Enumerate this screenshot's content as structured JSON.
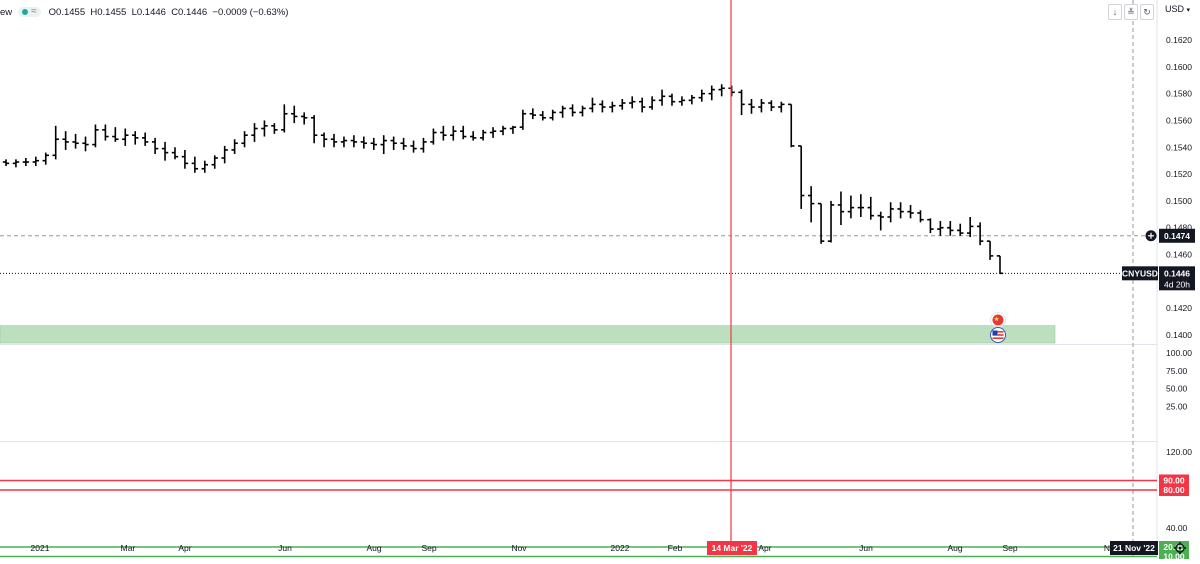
{
  "legend": {
    "cut_text": "ew",
    "waves_symbol": "≈",
    "ohlc": "O0.1455  H0.1455  L0.1446  C0.1446  −0.0009 (−0.63%)"
  },
  "toolbar": {
    "currency": "USD",
    "down_icon": "↓",
    "collapse_icon": "≚"
  },
  "colors": {
    "bar": "#000000",
    "zone": "#a5d6a7",
    "red_line": "#f23645",
    "green_line": "#4caf50",
    "badge_bg": "#131722",
    "date_badge_bg": "#f23645",
    "grid_separator": "#e0e3eb"
  },
  "chart_data": [
    {
      "type": "ohlc",
      "x_axis": {
        "labels": [
          "2021",
          "Mar",
          "Apr",
          "Jun",
          "Aug",
          "Sep",
          "Nov",
          "2022",
          "Feb",
          "Apr",
          "Jun",
          "Aug",
          "Sep",
          "N"
        ]
      },
      "y_axis": {
        "ticks": [
          "0.1620",
          "0.1600",
          "0.1580",
          "0.1560",
          "0.1540",
          "0.1520",
          "0.1500",
          "0.1480",
          "0.1460",
          "0.1440",
          "0.1420",
          "0.1400"
        ],
        "range": [
          0.1392,
          0.1632
        ]
      },
      "symbol": "CNYUSD",
      "last_price": "0.1446",
      "countdown": "4d 20h",
      "crosshair_price": "0.1474",
      "crosshair_date": "14 Mar '22",
      "end_date": "21 Nov '22",
      "zone": {
        "low": 0.1394,
        "high": 0.1407
      },
      "bars": [
        [
          0.1529,
          0.1531,
          0.1526,
          0.1528
        ],
        [
          0.1528,
          0.1531,
          0.1525,
          0.1529
        ],
        [
          0.1529,
          0.1532,
          0.1526,
          0.1529
        ],
        [
          0.1529,
          0.1533,
          0.1526,
          0.153
        ],
        [
          0.153,
          0.1536,
          0.1527,
          0.1534
        ],
        [
          0.1534,
          0.1556,
          0.1531,
          0.1546
        ],
        [
          0.1546,
          0.1552,
          0.1538,
          0.1544
        ],
        [
          0.1544,
          0.155,
          0.1539,
          0.1543
        ],
        [
          0.1543,
          0.1548,
          0.1537,
          0.1542
        ],
        [
          0.1542,
          0.1557,
          0.154,
          0.1553
        ],
        [
          0.1553,
          0.1557,
          0.1545,
          0.1548
        ],
        [
          0.1548,
          0.1555,
          0.1544,
          0.1546
        ],
        [
          0.1546,
          0.1554,
          0.1541,
          0.1549
        ],
        [
          0.1549,
          0.1552,
          0.1542,
          0.1547
        ],
        [
          0.1547,
          0.1551,
          0.1541,
          0.1544
        ],
        [
          0.1544,
          0.1547,
          0.1535,
          0.1539
        ],
        [
          0.1539,
          0.1544,
          0.153,
          0.1536
        ],
        [
          0.1536,
          0.154,
          0.1531,
          0.1533
        ],
        [
          0.1533,
          0.1538,
          0.1524,
          0.1528
        ],
        [
          0.1528,
          0.1533,
          0.1521,
          0.1524
        ],
        [
          0.1524,
          0.153,
          0.1521,
          0.1527
        ],
        [
          0.1527,
          0.1534,
          0.1524,
          0.1532
        ],
        [
          0.1532,
          0.1541,
          0.1528,
          0.1538
        ],
        [
          0.1538,
          0.1546,
          0.1535,
          0.1543
        ],
        [
          0.1543,
          0.1552,
          0.154,
          0.1549
        ],
        [
          0.1549,
          0.1558,
          0.1544,
          0.1554
        ],
        [
          0.1554,
          0.156,
          0.1548,
          0.1556
        ],
        [
          0.1556,
          0.1558,
          0.155,
          0.1553
        ],
        [
          0.1553,
          0.1572,
          0.1551,
          0.1565
        ],
        [
          0.1565,
          0.1571,
          0.1558,
          0.1563
        ],
        [
          0.1563,
          0.1566,
          0.1557,
          0.1562
        ],
        [
          0.1562,
          0.1564,
          0.1543,
          0.1549
        ],
        [
          0.1549,
          0.1551,
          0.154,
          0.1546
        ],
        [
          0.1546,
          0.155,
          0.154,
          0.1544
        ],
        [
          0.1544,
          0.1548,
          0.154,
          0.1545
        ],
        [
          0.1545,
          0.1549,
          0.154,
          0.1544
        ],
        [
          0.1544,
          0.1548,
          0.1539,
          0.1543
        ],
        [
          0.1543,
          0.1547,
          0.1538,
          0.1542
        ],
        [
          0.1542,
          0.1549,
          0.1535,
          0.1545
        ],
        [
          0.1545,
          0.1548,
          0.1538,
          0.1543
        ],
        [
          0.1543,
          0.1547,
          0.1538,
          0.1541
        ],
        [
          0.1541,
          0.1545,
          0.1536,
          0.1539
        ],
        [
          0.1539,
          0.1547,
          0.1536,
          0.1544
        ],
        [
          0.1544,
          0.1554,
          0.1542,
          0.1551
        ],
        [
          0.1551,
          0.1556,
          0.1545,
          0.1549
        ],
        [
          0.1549,
          0.1556,
          0.1545,
          0.1552
        ],
        [
          0.1552,
          0.1556,
          0.1546,
          0.1548
        ],
        [
          0.1548,
          0.1552,
          0.1545,
          0.1547
        ],
        [
          0.1547,
          0.1553,
          0.1545,
          0.1551
        ],
        [
          0.1551,
          0.1555,
          0.1547,
          0.1552
        ],
        [
          0.1552,
          0.1556,
          0.1549,
          0.1554
        ],
        [
          0.1554,
          0.1556,
          0.155,
          0.1555
        ],
        [
          0.1555,
          0.1568,
          0.1553,
          0.1565
        ],
        [
          0.1565,
          0.1569,
          0.1561,
          0.1564
        ],
        [
          0.1564,
          0.1567,
          0.156,
          0.1562
        ],
        [
          0.1562,
          0.1568,
          0.156,
          0.1566
        ],
        [
          0.1566,
          0.1571,
          0.1562,
          0.1569
        ],
        [
          0.1569,
          0.1572,
          0.1563,
          0.1566
        ],
        [
          0.1566,
          0.1571,
          0.1563,
          0.1569
        ],
        [
          0.1569,
          0.1577,
          0.1566,
          0.1572
        ],
        [
          0.1572,
          0.1575,
          0.1566,
          0.157
        ],
        [
          0.157,
          0.1574,
          0.1566,
          0.1571
        ],
        [
          0.1571,
          0.1576,
          0.1568,
          0.1573
        ],
        [
          0.1573,
          0.1578,
          0.1569,
          0.1574
        ],
        [
          0.1574,
          0.1577,
          0.1566,
          0.157
        ],
        [
          0.157,
          0.1578,
          0.1568,
          0.1575
        ],
        [
          0.1575,
          0.1583,
          0.1571,
          0.1578
        ],
        [
          0.1578,
          0.158,
          0.1571,
          0.1574
        ],
        [
          0.1574,
          0.1578,
          0.1571,
          0.1575
        ],
        [
          0.1575,
          0.1579,
          0.1572,
          0.1577
        ],
        [
          0.1577,
          0.1583,
          0.1574,
          0.158
        ],
        [
          0.158,
          0.1586,
          0.1575,
          0.1583
        ],
        [
          0.1583,
          0.1587,
          0.1578,
          0.1584
        ],
        [
          0.1584,
          0.1586,
          0.1578,
          0.1581
        ],
        [
          0.1581,
          0.1583,
          0.1564,
          0.1572
        ],
        [
          0.1572,
          0.1576,
          0.1565,
          0.157
        ],
        [
          0.157,
          0.1576,
          0.1566,
          0.1573
        ],
        [
          0.1573,
          0.1575,
          0.1567,
          0.157
        ],
        [
          0.157,
          0.1574,
          0.1566,
          0.1572
        ],
        [
          0.1572,
          0.1572,
          0.154,
          0.1541
        ],
        [
          0.1541,
          0.1541,
          0.1494,
          0.1504
        ],
        [
          0.1504,
          0.1511,
          0.1484,
          0.1498
        ],
        [
          0.1498,
          0.1498,
          0.1468,
          0.147
        ],
        [
          0.147,
          0.15,
          0.1469,
          0.1497
        ],
        [
          0.1497,
          0.1507,
          0.1482,
          0.1492
        ],
        [
          0.1492,
          0.1504,
          0.1487,
          0.1495
        ],
        [
          0.1495,
          0.1505,
          0.1488,
          0.1495
        ],
        [
          0.1495,
          0.1503,
          0.1486,
          0.1489
        ],
        [
          0.1489,
          0.1492,
          0.1478,
          0.1488
        ],
        [
          0.1488,
          0.1499,
          0.1484,
          0.1494
        ],
        [
          0.1494,
          0.1499,
          0.1487,
          0.1492
        ],
        [
          0.1492,
          0.1497,
          0.1487,
          0.1491
        ],
        [
          0.1491,
          0.1493,
          0.1484,
          0.1486
        ],
        [
          0.1486,
          0.1487,
          0.1476,
          0.1479
        ],
        [
          0.1479,
          0.1485,
          0.1474,
          0.148
        ],
        [
          0.148,
          0.1485,
          0.1474,
          0.1478
        ],
        [
          0.1478,
          0.1483,
          0.1474,
          0.1476
        ],
        [
          0.1476,
          0.1488,
          0.1473,
          0.1481
        ],
        [
          0.1481,
          0.1484,
          0.1467,
          0.147
        ],
        [
          0.147,
          0.147,
          0.1456,
          0.1459
        ],
        [
          0.1459,
          0.1459,
          0.1446,
          0.1446
        ]
      ]
    },
    {
      "type": "line",
      "y_axis": {
        "ticks": [
          "100.00",
          "75.00",
          "50.00",
          "25.00"
        ],
        "range": [
          0,
          108
        ]
      }
    },
    {
      "type": "line",
      "y_axis": {
        "ticks": [
          "120.00",
          "40.00"
        ],
        "range": [
          0,
          130
        ]
      },
      "levels": [
        {
          "label": "90.00",
          "value": 90,
          "color": "#f23645"
        },
        {
          "label": "80.00",
          "value": 80,
          "color": "#f23645"
        },
        {
          "label": "20.00",
          "value": 20,
          "color": "#4caf50"
        },
        {
          "label": "10.00",
          "value": 10,
          "color": "#4caf50"
        }
      ]
    }
  ]
}
